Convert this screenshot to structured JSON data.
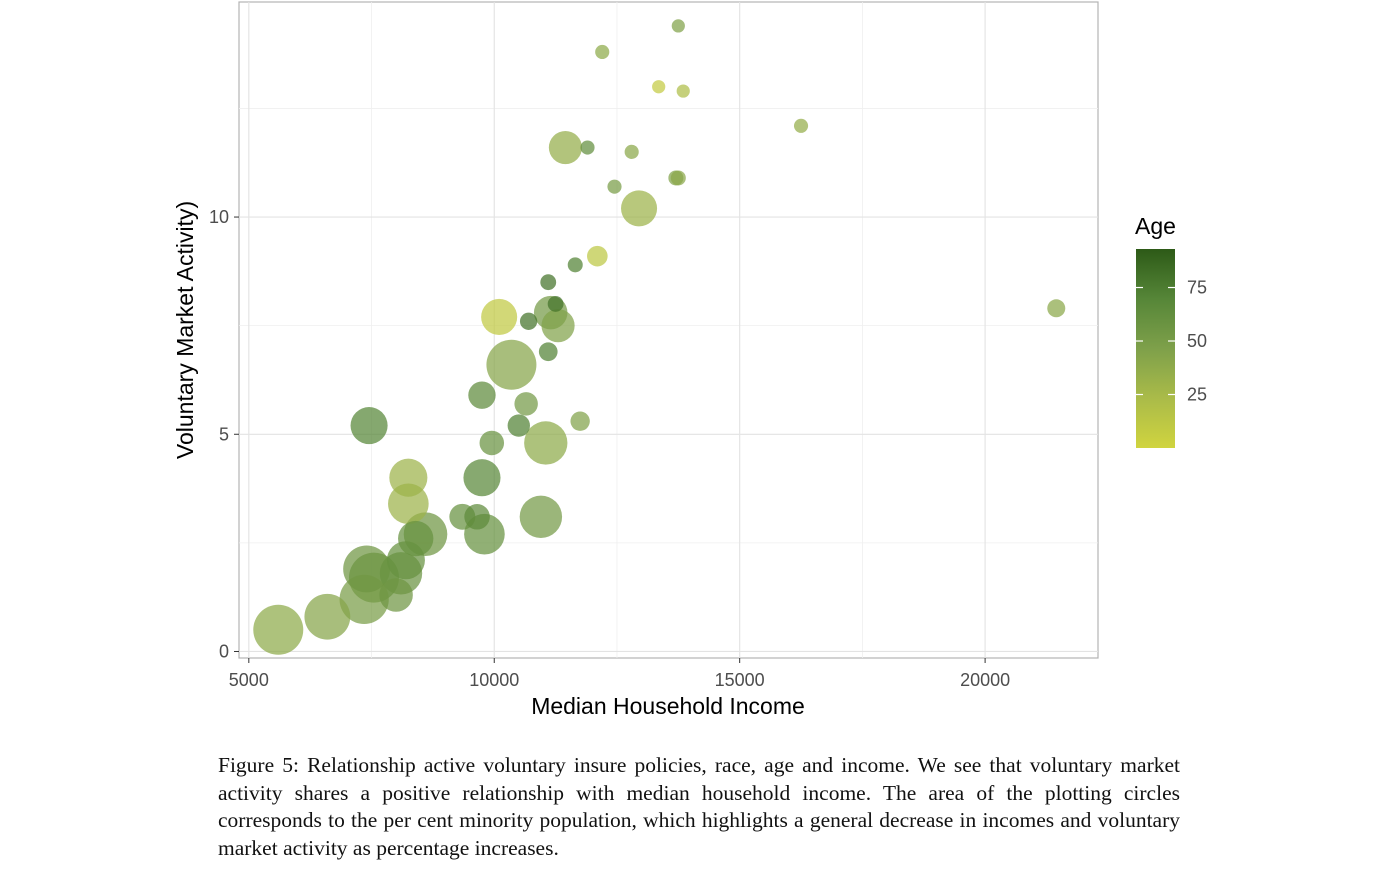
{
  "chart_data": {
    "type": "scatter",
    "xlabel": "Median Household Income",
    "ylabel": "Voluntary Market Activity)",
    "xlim": [
      4800,
      22300
    ],
    "ylim": [
      -0.15,
      14.95
    ],
    "x_ticks": [
      5000,
      10000,
      15000,
      20000
    ],
    "x_tick_labels": [
      "5000",
      "10000",
      "15000",
      "20000"
    ],
    "y_ticks": [
      0,
      5,
      10
    ],
    "y_tick_labels": [
      "0",
      "5",
      "10"
    ],
    "grid": true,
    "legend": {
      "title": "Age",
      "placement": "right",
      "type": "colorbar",
      "range": [
        0,
        93
      ],
      "ticks": [
        25,
        50,
        75
      ],
      "tick_labels": [
        "25",
        "50",
        "75"
      ],
      "colors": [
        "#d0d43f",
        "#2d5a17"
      ]
    },
    "size_encodes": "per cent minority population",
    "points": [
      {
        "x": 5600,
        "y": 0.5,
        "size": 1.0,
        "age": 38
      },
      {
        "x": 6600,
        "y": 0.8,
        "size": 0.84,
        "age": 42
      },
      {
        "x": 7350,
        "y": 1.2,
        "size": 0.97,
        "age": 50
      },
      {
        "x": 7400,
        "y": 1.9,
        "size": 0.88,
        "age": 55
      },
      {
        "x": 7550,
        "y": 1.7,
        "size": 1.0,
        "age": 60
      },
      {
        "x": 7450,
        "y": 5.2,
        "size": 0.55,
        "age": 70
      },
      {
        "x": 8000,
        "y": 1.3,
        "size": 0.45,
        "age": 55
      },
      {
        "x": 8100,
        "y": 1.8,
        "size": 0.72,
        "age": 58
      },
      {
        "x": 8200,
        "y": 2.1,
        "size": 0.58,
        "age": 60
      },
      {
        "x": 8250,
        "y": 4.0,
        "size": 0.58,
        "age": 30
      },
      {
        "x": 8250,
        "y": 3.4,
        "size": 0.66,
        "age": 30
      },
      {
        "x": 8400,
        "y": 2.6,
        "size": 0.5,
        "age": 60
      },
      {
        "x": 8600,
        "y": 2.7,
        "size": 0.76,
        "age": 55
      },
      {
        "x": 9350,
        "y": 3.1,
        "size": 0.27,
        "age": 60
      },
      {
        "x": 9650,
        "y": 3.1,
        "size": 0.26,
        "age": 65
      },
      {
        "x": 9750,
        "y": 5.9,
        "size": 0.3,
        "age": 65
      },
      {
        "x": 9750,
        "y": 4.0,
        "size": 0.55,
        "age": 68
      },
      {
        "x": 9800,
        "y": 2.7,
        "size": 0.66,
        "age": 60
      },
      {
        "x": 9950,
        "y": 4.8,
        "size": 0.24,
        "age": 58
      },
      {
        "x": 10100,
        "y": 7.7,
        "size": 0.52,
        "age": 10
      },
      {
        "x": 10350,
        "y": 6.6,
        "size": 1.0,
        "age": 42
      },
      {
        "x": 10500,
        "y": 5.2,
        "size": 0.2,
        "age": 72
      },
      {
        "x": 10650,
        "y": 5.7,
        "size": 0.22,
        "age": 52
      },
      {
        "x": 10700,
        "y": 7.6,
        "size": 0.12,
        "age": 80
      },
      {
        "x": 10950,
        "y": 3.1,
        "size": 0.72,
        "age": 52
      },
      {
        "x": 11050,
        "y": 4.8,
        "size": 0.75,
        "age": 38
      },
      {
        "x": 11100,
        "y": 8.5,
        "size": 0.1,
        "age": 80
      },
      {
        "x": 11100,
        "y": 6.9,
        "size": 0.14,
        "age": 72
      },
      {
        "x": 11150,
        "y": 7.8,
        "size": 0.45,
        "age": 52
      },
      {
        "x": 11250,
        "y": 8.0,
        "size": 0.1,
        "age": 80
      },
      {
        "x": 11300,
        "y": 7.5,
        "size": 0.44,
        "age": 45
      },
      {
        "x": 11450,
        "y": 11.6,
        "size": 0.44,
        "age": 35
      },
      {
        "x": 11650,
        "y": 8.9,
        "size": 0.09,
        "age": 72
      },
      {
        "x": 11750,
        "y": 5.3,
        "size": 0.15,
        "age": 45
      },
      {
        "x": 11900,
        "y": 11.6,
        "size": 0.08,
        "age": 62
      },
      {
        "x": 12100,
        "y": 9.1,
        "size": 0.17,
        "age": 12
      },
      {
        "x": 12200,
        "y": 13.8,
        "size": 0.08,
        "age": 38
      },
      {
        "x": 12450,
        "y": 10.7,
        "size": 0.08,
        "age": 50
      },
      {
        "x": 12800,
        "y": 11.5,
        "size": 0.08,
        "age": 40
      },
      {
        "x": 12950,
        "y": 10.2,
        "size": 0.52,
        "age": 30
      },
      {
        "x": 13350,
        "y": 13.0,
        "size": 0.07,
        "age": 8
      },
      {
        "x": 13700,
        "y": 10.9,
        "size": 0.09,
        "age": 45
      },
      {
        "x": 13750,
        "y": 10.9,
        "size": 0.09,
        "age": 40
      },
      {
        "x": 13750,
        "y": 14.4,
        "size": 0.07,
        "age": 45
      },
      {
        "x": 13850,
        "y": 12.9,
        "size": 0.07,
        "age": 20
      },
      {
        "x": 16250,
        "y": 12.1,
        "size": 0.08,
        "age": 35
      },
      {
        "x": 21450,
        "y": 7.9,
        "size": 0.13,
        "age": 40
      }
    ]
  },
  "caption": "Figure 5:  Relationship active voluntary insure policies, race, age and income.  We see that voluntary market activity shares a positive relationship with median household income. The area of the plotting circles corresponds to the per cent minority population, which highlights a general decrease in incomes and voluntary market activity as percentage increases."
}
